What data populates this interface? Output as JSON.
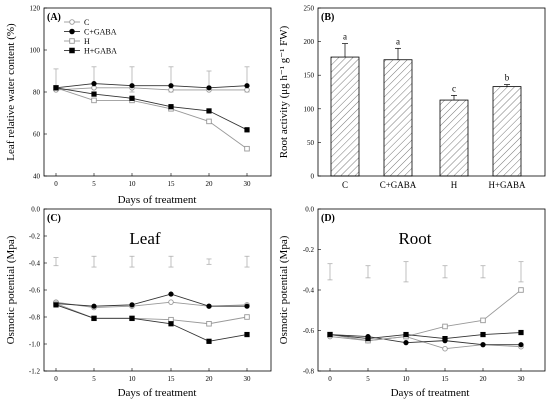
{
  "chart_data": [
    {
      "id": "A",
      "type": "line",
      "panel_label": "(A)",
      "title": "",
      "xlabel": "Days of treatment",
      "ylabel": "Leaf relative water content (%)",
      "x": [
        0,
        5,
        10,
        15,
        20,
        30
      ],
      "x_ticks": [
        "0",
        "5",
        "10",
        "15",
        "20",
        "30"
      ],
      "ylim": [
        40,
        120
      ],
      "y_ticks": [
        40,
        60,
        80,
        100,
        120
      ],
      "legend": {
        "position": "top-left"
      },
      "series": [
        {
          "name": "C",
          "marker": "open-circle",
          "color": "#999999",
          "values": [
            81,
            82,
            82,
            81,
            81,
            81
          ]
        },
        {
          "name": "C+GABA",
          "marker": "filled-circle",
          "color": "#333333",
          "values": [
            82,
            84,
            83,
            83,
            82,
            83
          ]
        },
        {
          "name": "H",
          "marker": "open-square",
          "color": "#999999",
          "values": [
            82,
            76,
            76,
            72,
            66,
            53
          ]
        },
        {
          "name": "H+GABA",
          "marker": "filled-square",
          "color": "#333333",
          "values": [
            82,
            79,
            77,
            73,
            71,
            62
          ]
        }
      ],
      "error_bars": {
        "center": [
          86,
          87,
          86,
          86,
          86,
          86
        ],
        "half_width": [
          5,
          5,
          6,
          6,
          4,
          6
        ]
      }
    },
    {
      "id": "B",
      "type": "bar",
      "panel_label": "(B)",
      "title": "",
      "xlabel": "",
      "ylabel": "Root activity (μg h⁻¹ g⁻¹ FW)",
      "categories": [
        "C",
        "C+GABA",
        "H",
        "H+GABA"
      ],
      "values": [
        177,
        173,
        113,
        133
      ],
      "errors": [
        20,
        17,
        7,
        3
      ],
      "labels": [
        "a",
        "a",
        "c",
        "b"
      ],
      "ylim": [
        0,
        250
      ],
      "y_ticks": [
        0,
        50,
        100,
        150,
        200,
        250
      ]
    },
    {
      "id": "C",
      "type": "line",
      "panel_label": "(C)",
      "title": "Leaf",
      "xlabel": "Days of treatment",
      "ylabel": "Osmotic potential (Mpa)",
      "x": [
        0,
        5,
        10,
        15,
        20,
        30
      ],
      "x_ticks": [
        "0",
        "5",
        "10",
        "15",
        "20",
        "30"
      ],
      "ylim": [
        -1.2,
        0.0
      ],
      "y_ticks": [
        -1.2,
        -1.0,
        -0.8,
        -0.6,
        -0.4,
        -0.2,
        0.0
      ],
      "y_tick_labels": [
        "-1.2",
        "-1.0",
        "-0.8",
        "-0.6",
        "-0.4",
        "-0.2",
        "0.0"
      ],
      "series": [
        {
          "name": "C",
          "marker": "open-circle",
          "color": "#999999",
          "values": [
            -0.69,
            -0.73,
            -0.72,
            -0.69,
            -0.72,
            -0.71
          ]
        },
        {
          "name": "C+GABA",
          "marker": "filled-circle",
          "color": "#333333",
          "values": [
            -0.7,
            -0.72,
            -0.71,
            -0.63,
            -0.72,
            -0.72
          ]
        },
        {
          "name": "H",
          "marker": "open-square",
          "color": "#999999",
          "values": [
            -0.7,
            -0.81,
            -0.81,
            -0.82,
            -0.85,
            -0.8
          ]
        },
        {
          "name": "H+GABA",
          "marker": "filled-square",
          "color": "#333333",
          "values": [
            -0.71,
            -0.81,
            -0.81,
            -0.85,
            -0.98,
            -0.93
          ]
        }
      ],
      "error_bars": {
        "center": [
          -0.39,
          -0.39,
          -0.39,
          -0.39,
          -0.39,
          -0.39
        ],
        "half_width": [
          0.03,
          0.04,
          0.04,
          0.04,
          0.02,
          0.04
        ]
      }
    },
    {
      "id": "D",
      "type": "line",
      "panel_label": "(D)",
      "title": "Root",
      "xlabel": "Days of treatment",
      "ylabel": "Osmotic potential (Mpa)",
      "x": [
        0,
        5,
        10,
        15,
        20,
        30
      ],
      "x_ticks": [
        "0",
        "5",
        "10",
        "15",
        "20",
        "30"
      ],
      "ylim": [
        -0.8,
        0.0
      ],
      "y_ticks": [
        -0.8,
        -0.6,
        -0.4,
        -0.2,
        0.0
      ],
      "y_tick_labels": [
        "-0.8",
        "-0.6",
        "-0.4",
        "-0.2",
        "0.0"
      ],
      "series": [
        {
          "name": "C",
          "marker": "open-circle",
          "color": "#999999",
          "values": [
            -0.63,
            -0.65,
            -0.63,
            -0.69,
            -0.67,
            -0.68
          ]
        },
        {
          "name": "C+GABA",
          "marker": "filled-circle",
          "color": "#333333",
          "values": [
            -0.62,
            -0.63,
            -0.66,
            -0.65,
            -0.67,
            -0.67
          ]
        },
        {
          "name": "H",
          "marker": "open-square",
          "color": "#999999",
          "values": [
            -0.62,
            -0.65,
            -0.63,
            -0.58,
            -0.55,
            -0.4
          ]
        },
        {
          "name": "H+GABA",
          "marker": "filled-square",
          "color": "#333333",
          "values": [
            -0.62,
            -0.64,
            -0.62,
            -0.64,
            -0.62,
            -0.61
          ]
        }
      ],
      "error_bars": {
        "center": [
          -0.31,
          -0.31,
          -0.31,
          -0.31,
          -0.31,
          -0.31
        ],
        "half_width": [
          0.04,
          0.03,
          0.05,
          0.03,
          0.03,
          0.05
        ]
      }
    }
  ]
}
